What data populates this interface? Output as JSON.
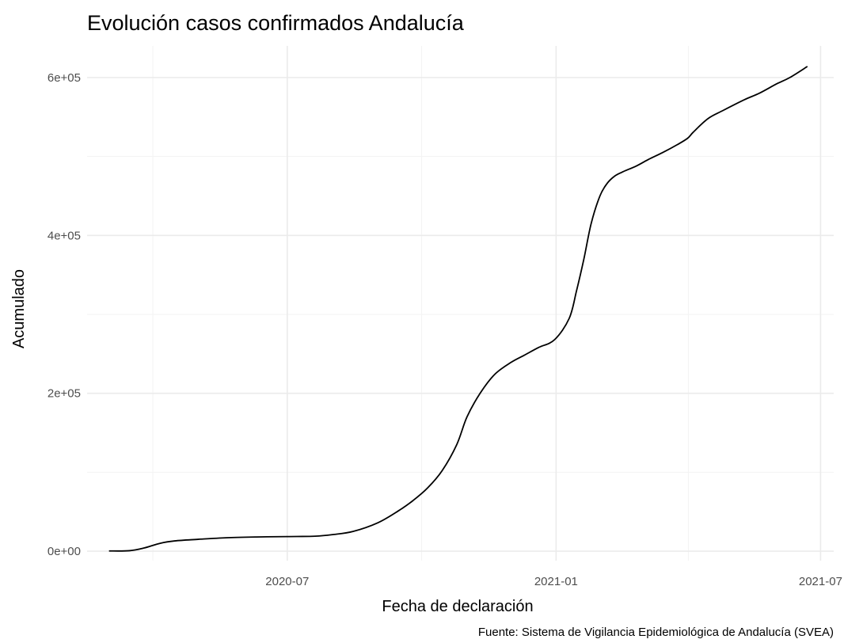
{
  "chart_data": {
    "type": "line",
    "title": "Evolución casos confirmados Andalucía",
    "xlabel": "Fecha de declaración",
    "ylabel": "Acumulado",
    "caption": "Fuente: Sistema de Vigilancia Epidemiológica de Andalucía (SVEA)",
    "x_tick_labels": [
      "2020-07",
      "2021-01",
      "2021-07"
    ],
    "y_tick_labels": [
      "0e+00",
      "2e+05",
      "4e+05",
      "6e+05"
    ],
    "ylim": [
      -12000,
      640000
    ],
    "xlim": [
      "2020-02-15",
      "2021-07-10"
    ],
    "grid": true,
    "series": [
      {
        "x": [
          "2020-03-01",
          "2020-03-15",
          "2020-03-25",
          "2020-04-05",
          "2020-04-15",
          "2020-05-01",
          "2020-05-20",
          "2020-06-10",
          "2020-07-01",
          "2020-07-20",
          "2020-08-01",
          "2020-08-15",
          "2020-09-01",
          "2020-09-15",
          "2020-09-25",
          "2020-10-05",
          "2020-10-15",
          "2020-10-25",
          "2020-11-01",
          "2020-11-10",
          "2020-11-20",
          "2020-12-01",
          "2020-12-10",
          "2020-12-20",
          "2020-12-31",
          "2021-01-10",
          "2021-01-15",
          "2021-01-20",
          "2021-01-25",
          "2021-01-31",
          "2021-02-05",
          "2021-02-10",
          "2021-02-15",
          "2021-02-25",
          "2021-03-05",
          "2021-03-15",
          "2021-03-25",
          "2021-04-01",
          "2021-04-05",
          "2021-04-15",
          "2021-04-25",
          "2021-05-10",
          "2021-05-20",
          "2021-06-01",
          "2021-06-10",
          "2021-06-22"
        ],
        "y": [
          300,
          600,
          4000,
          10000,
          13000,
          15000,
          17000,
          18000,
          18500,
          19000,
          21000,
          25000,
          36000,
          51000,
          64000,
          80000,
          102000,
          135000,
          170000,
          200000,
          224000,
          239000,
          248000,
          258000,
          268000,
          295000,
          330000,
          370000,
          415000,
          450000,
          466000,
          475000,
          480000,
          488000,
          496000,
          505000,
          515000,
          523000,
          531000,
          548000,
          558000,
          572000,
          580000,
          592000,
          600000,
          614000
        ]
      }
    ]
  }
}
